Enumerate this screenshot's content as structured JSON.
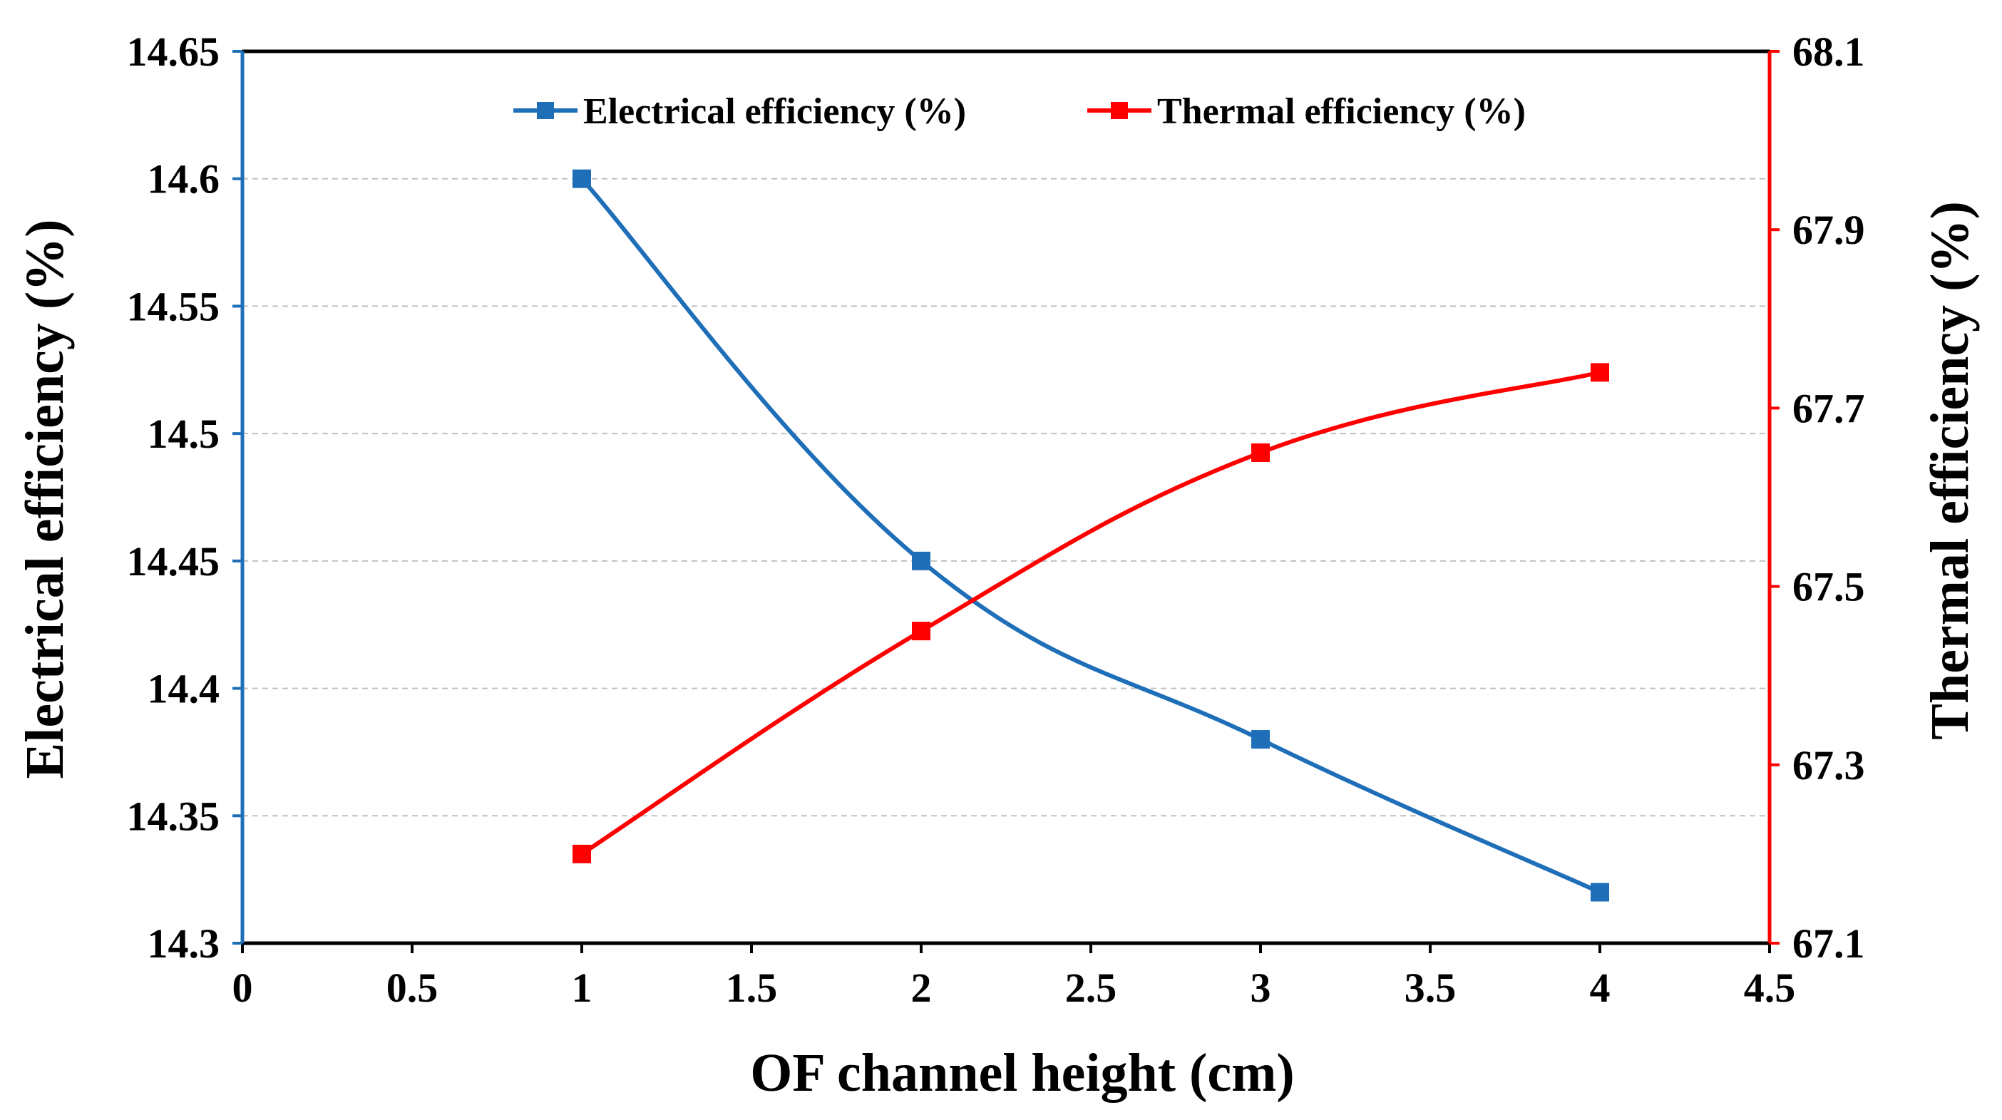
{
  "chart_data": {
    "type": "line",
    "title": "",
    "xlabel": "OF channel height (cm)",
    "ylabel_left": "Electrical efficiency (%)",
    "ylabel_right": "Thermal efficiency (%)",
    "xlim": [
      0,
      4.5
    ],
    "ylim_left": [
      14.3,
      14.65
    ],
    "ylim_right": [
      67.1,
      68.1
    ],
    "x_ticks": [
      "0",
      "0.5",
      "1",
      "1.5",
      "2",
      "2.5",
      "3",
      "3.5",
      "4",
      "4.5"
    ],
    "y_left_ticks": [
      "14.3",
      "14.35",
      "14.4",
      "14.45",
      "14.5",
      "14.55",
      "14.6",
      "14.65"
    ],
    "y_right_ticks": [
      "67.1",
      "67.3",
      "67.5",
      "67.7",
      "67.9",
      "68.1"
    ],
    "grid": true,
    "legend_position": "top",
    "series": [
      {
        "name": "Electrical efficiency (%)",
        "axis": "left",
        "color": "#1f6fb8",
        "marker": "square",
        "x": [
          1,
          2,
          3,
          4
        ],
        "y": [
          14.6,
          14.45,
          14.38,
          14.32
        ]
      },
      {
        "name": "Thermal efficiency (%)",
        "axis": "right",
        "color": "#ff0000",
        "marker": "square",
        "x": [
          1,
          2,
          3,
          4
        ],
        "y": [
          67.2,
          67.45,
          67.65,
          67.74
        ]
      }
    ],
    "colors": {
      "left_axis": "#1f6fb8",
      "right_axis": "#ff0000",
      "bottom_axis": "#000000",
      "top_axis": "#000000",
      "grid": "#c0c0c0"
    }
  }
}
